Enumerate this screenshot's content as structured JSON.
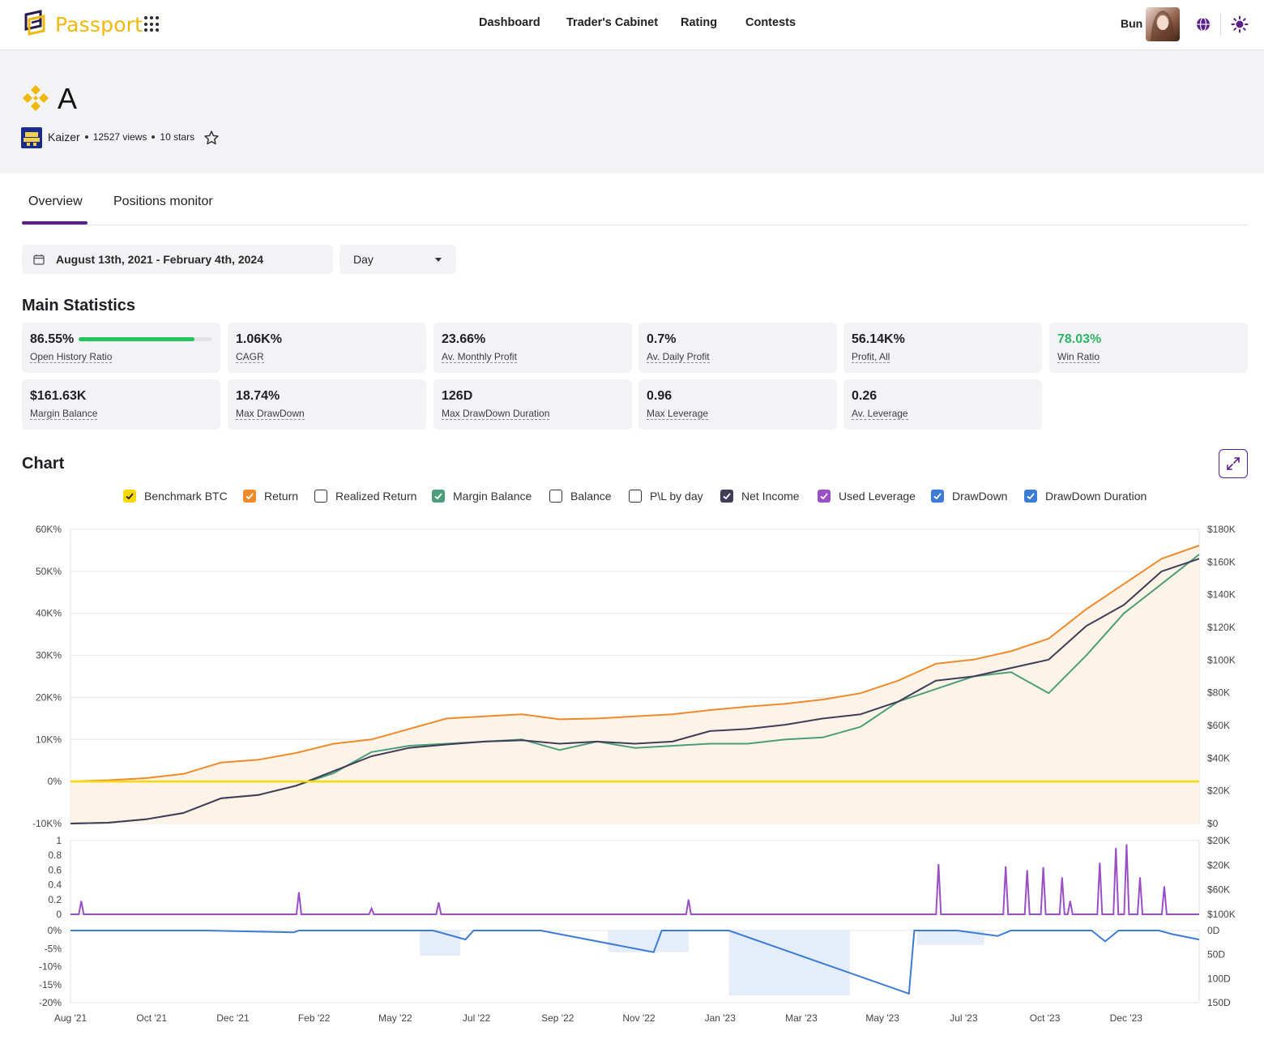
{
  "brand": {
    "name": "Passport"
  },
  "nav": {
    "items": [
      "Dashboard",
      "Trader's Cabinet",
      "Rating",
      "Contests"
    ]
  },
  "user": {
    "name": "Bun"
  },
  "page": {
    "title": "A",
    "author": "Kaizer",
    "views": "12527 views",
    "stars": "10 stars"
  },
  "tabs": [
    "Overview",
    "Positions monitor"
  ],
  "filters": {
    "date_range": "August 13th, 2021 - February 4th, 2024",
    "period": "Day"
  },
  "main_statistics": {
    "title": "Main Statistics",
    "open_history_ratio_pct": 86.55,
    "items": [
      {
        "value": "86.55%",
        "label": "Open History Ratio"
      },
      {
        "value": "1.06K%",
        "label": "CAGR"
      },
      {
        "value": "23.66%",
        "label": "Av. Monthly Profit"
      },
      {
        "value": "0.7%",
        "label": "Av. Daily Profit"
      },
      {
        "value": "56.14K%",
        "label": "Profit, All"
      },
      {
        "value": "78.03%",
        "label": "Win Ratio"
      },
      {
        "value": "$161.63K",
        "label": "Margin Balance"
      },
      {
        "value": "18.74%",
        "label": "Max DrawDown"
      },
      {
        "value": "126D",
        "label": "Max DrawDown Duration"
      },
      {
        "value": "0.96",
        "label": "Max Leverage"
      },
      {
        "value": "0.26",
        "label": "Av. Leverage"
      }
    ]
  },
  "chart": {
    "title": "Chart",
    "legend": [
      {
        "label": "Benchmark BTC",
        "checked": true,
        "color": "#f5d90a"
      },
      {
        "label": "Return",
        "checked": true,
        "color": "#ee8a2a"
      },
      {
        "label": "Realized Return",
        "checked": false,
        "color": "#333333"
      },
      {
        "label": "Margin Balance",
        "checked": true,
        "color": "#4c9e7a"
      },
      {
        "label": "Balance",
        "checked": false,
        "color": "#333333"
      },
      {
        "label": "P\\L by day",
        "checked": false,
        "color": "#333333"
      },
      {
        "label": "Net Income",
        "checked": true,
        "color": "#403d59"
      },
      {
        "label": "Used Leverage",
        "checked": true,
        "color": "#9b4fc7"
      },
      {
        "label": "DrawDown",
        "checked": true,
        "color": "#3c7bd6"
      },
      {
        "label": "DrawDown Duration",
        "checked": true,
        "color": "#3c7bd6"
      }
    ]
  },
  "chart_data": [
    {
      "type": "line",
      "x": [
        "Aug '21",
        "Sep '21",
        "Oct '21",
        "Nov '21",
        "Dec '21",
        "Jan '22",
        "Feb '22",
        "Mar '22",
        "Apr '22",
        "May '22",
        "Jun '22",
        "Jul '22",
        "Aug '22",
        "Sep '22",
        "Oct '22",
        "Nov '22",
        "Dec '22",
        "Jan '23",
        "Feb '23",
        "Mar '23",
        "Apr '23",
        "May '23",
        "Jun '23",
        "Jul '23",
        "Aug '23",
        "Sep '23",
        "Oct '23",
        "Nov '23",
        "Dec '23",
        "Jan '24",
        "Feb '24"
      ],
      "x_ticks": [
        "Aug '21",
        "Oct '21",
        "Dec '21",
        "Feb '22",
        "May '22",
        "Jul '22",
        "Sep '22",
        "Nov '22",
        "Jan '23",
        "Mar '23",
        "May '23",
        "Jul '23",
        "Oct '23",
        "Dec '23"
      ],
      "y_left_ticks": [
        "60K%",
        "50K%",
        "40K%",
        "30K%",
        "20K%",
        "10K%",
        "0%",
        "-10K%"
      ],
      "y_right_ticks": [
        "$180K",
        "$160K",
        "$140K",
        "$120K",
        "$100K",
        "$80K",
        "$60K",
        "$40K",
        "$20K",
        "$0"
      ],
      "ylim": [
        -10000,
        60000
      ],
      "series": [
        {
          "name": "Return",
          "values": [
            0,
            300,
            800,
            1800,
            4500,
            5200,
            6800,
            9000,
            10000,
            12500,
            15000,
            15500,
            16000,
            14800,
            15000,
            15500,
            16000,
            17000,
            17800,
            18500,
            19500,
            21000,
            24000,
            28000,
            29000,
            31000,
            34000,
            41000,
            47000,
            53000,
            56140
          ]
        },
        {
          "name": "Net Income",
          "values": [
            -10000,
            -9800,
            -9000,
            -7500,
            -4000,
            -3200,
            -1000,
            2500,
            6000,
            8000,
            8800,
            9500,
            9800,
            9000,
            9500,
            9000,
            9500,
            12000,
            12500,
            13500,
            15000,
            16000,
            19000,
            24000,
            25000,
            27000,
            29000,
            37000,
            42000,
            50000,
            53000
          ]
        },
        {
          "name": "Margin Balance",
          "values": [
            -10000,
            -9800,
            -9000,
            -7500,
            -4000,
            -3200,
            -1000,
            2000,
            7000,
            8500,
            9000,
            9500,
            10000,
            7500,
            9500,
            8000,
            8500,
            9000,
            9000,
            10000,
            10500,
            13000,
            19000,
            22000,
            25000,
            26000,
            21000,
            30000,
            40000,
            47000,
            54000
          ]
        },
        {
          "name": "Benchmark BTC",
          "values": [
            0,
            0,
            0,
            0,
            0,
            0,
            0,
            0,
            0,
            0,
            0,
            0,
            0,
            0,
            0,
            0,
            0,
            0,
            0,
            0,
            0,
            0,
            0,
            0,
            0,
            0,
            0,
            0,
            0,
            0,
            0
          ]
        }
      ]
    },
    {
      "type": "line",
      "name": "Used Leverage",
      "y_ticks": [
        "1",
        "0.8",
        "0.6",
        "0.4",
        "0.2",
        "0"
      ],
      "y_right_ticks": [
        "$20K",
        "$20K",
        "$60K",
        "$100K"
      ],
      "ylim": [
        0,
        1
      ],
      "spikes": [
        [
          0.4,
          0.18
        ],
        [
          8.5,
          0.3
        ],
        [
          11.2,
          0.08
        ],
        [
          13.7,
          0.16
        ],
        [
          23,
          0.2
        ],
        [
          32.3,
          0.68
        ],
        [
          34.8,
          0.65
        ],
        [
          35.6,
          0.6
        ],
        [
          36.2,
          0.64
        ],
        [
          36.9,
          0.5
        ],
        [
          37.2,
          0.18
        ],
        [
          38.3,
          0.7
        ],
        [
          38.9,
          0.9
        ],
        [
          39.3,
          0.95
        ],
        [
          39.8,
          0.5
        ],
        [
          40.7,
          0.38
        ]
      ]
    },
    {
      "type": "line",
      "name": "DrawDown",
      "y_ticks": [
        "0%",
        "-5%",
        "-10%",
        "-15%",
        "-20%"
      ],
      "y_right_ticks": [
        "0D",
        "50D",
        "100D",
        "150D"
      ],
      "ylim": [
        -20,
        0
      ],
      "max_drawdown": -18.74
    }
  ]
}
